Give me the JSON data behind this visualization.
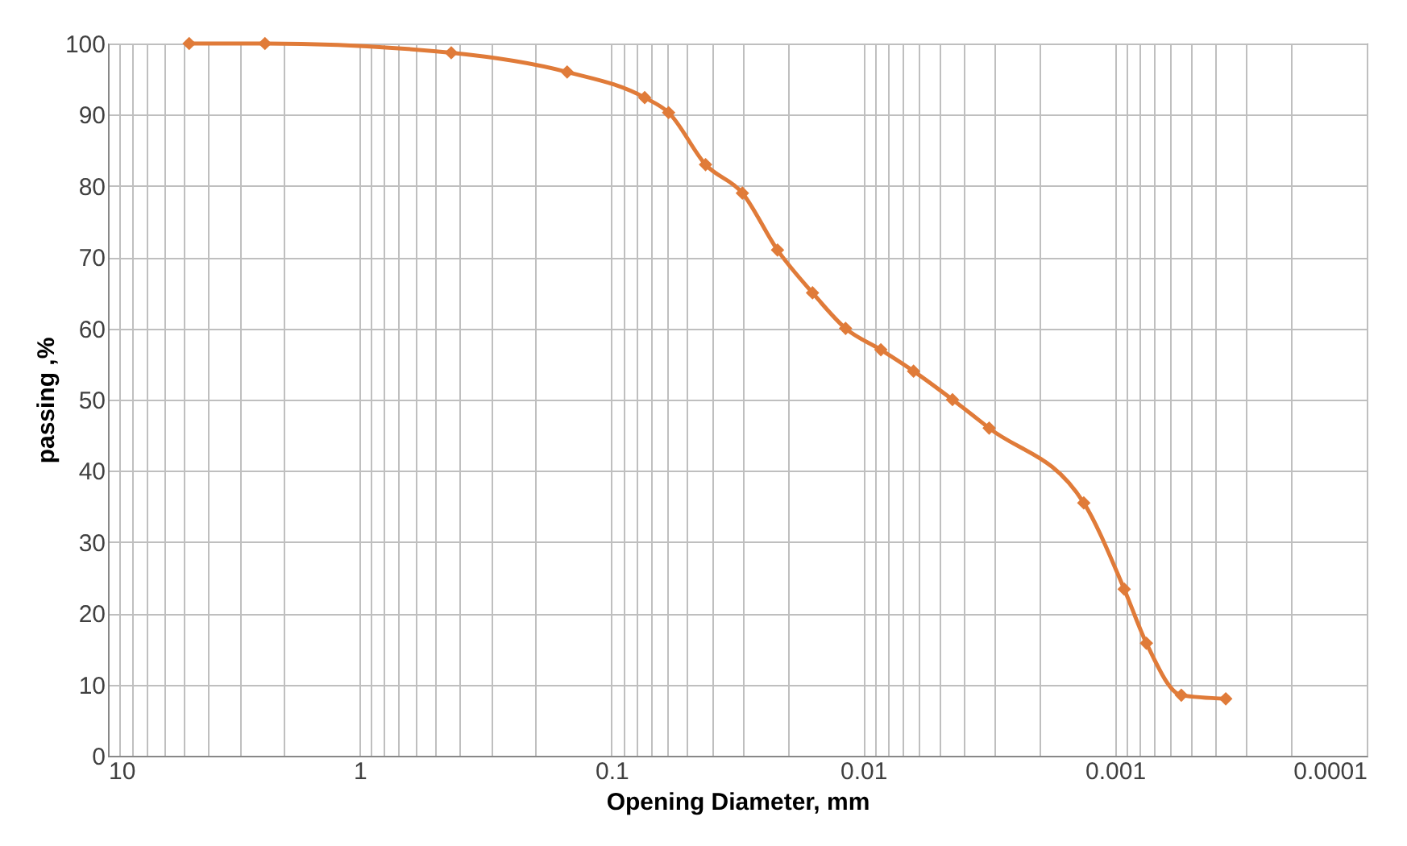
{
  "chart_data": {
    "type": "line",
    "xlabel": "Opening Diameter, mm",
    "ylabel": "passing ,%",
    "x": [
      4.76,
      2.38,
      0.433,
      0.15,
      0.0738,
      0.0593,
      0.0423,
      0.0302,
      0.0219,
      0.0159,
      0.01175,
      0.00851,
      0.00631,
      0.00442,
      0.00316,
      0.00133,
      0.000919,
      0.00075,
      0.000545,
      0.000363
    ],
    "series": [
      {
        "color": "#e07b39",
        "values": [
          100,
          100,
          98.7,
          96,
          92.4,
          90.3,
          83,
          79,
          71,
          65,
          60,
          57,
          54,
          50,
          46,
          35.5,
          23.4,
          15.8,
          8.5,
          8
        ]
      }
    ],
    "log": "x",
    "xlim": [
      10,
      0.0001
    ],
    "ylim": [
      0,
      100
    ],
    "xticks": [
      10,
      {
        "value": 9,
        "label": null
      },
      {
        "value": 8,
        "label": null
      },
      {
        "value": 7,
        "label": null
      },
      {
        "value": 6,
        "label": null
      },
      {
        "value": 5,
        "label": null
      },
      {
        "value": 4,
        "label": null
      },
      {
        "value": 3,
        "label": null
      },
      {
        "value": 2,
        "label": null
      },
      1,
      {
        "value": 0.9,
        "label": null
      },
      {
        "value": 0.8,
        "label": null
      },
      {
        "value": 0.7,
        "label": null
      },
      {
        "value": 0.6,
        "label": null
      },
      {
        "value": 0.5,
        "label": null
      },
      {
        "value": 0.4,
        "label": null
      },
      {
        "value": 0.3,
        "label": null
      },
      {
        "value": 0.2,
        "label": null
      },
      0.1,
      {
        "value": 0.09,
        "label": null
      },
      {
        "value": 0.08,
        "label": null
      },
      {
        "value": 0.07,
        "label": null
      },
      {
        "value": 0.06,
        "label": null
      },
      {
        "value": 0.05,
        "label": null
      },
      {
        "value": 0.04,
        "label": null
      },
      {
        "value": 0.03,
        "label": null
      },
      {
        "value": 0.02,
        "label": null
      },
      0.01,
      {
        "value": 0.009,
        "label": null
      },
      {
        "value": 0.008,
        "label": null
      },
      {
        "value": 0.007,
        "label": null
      },
      {
        "value": 0.006,
        "label": null
      },
      {
        "value": 0.005,
        "label": null
      },
      {
        "value": 0.004,
        "label": null
      },
      {
        "value": 0.003,
        "label": null
      },
      {
        "value": 0.002,
        "label": null
      },
      0.001,
      {
        "value": 0.0009,
        "label": null
      },
      {
        "value": 0.0008,
        "label": null
      },
      {
        "value": 0.0007,
        "label": null
      },
      {
        "value": 0.0006,
        "label": null
      },
      {
        "value": 0.0005,
        "label": null
      },
      {
        "value": 0.0004,
        "label": null
      },
      {
        "value": 0.0003,
        "label": null
      },
      {
        "value": 0.0002,
        "label": null
      },
      0.0001
    ],
    "yticks": [
      0,
      10,
      20,
      30,
      40,
      50,
      60,
      70,
      80,
      90,
      100
    ],
    "grid": true,
    "marker": "diamond",
    "line_style": "solid"
  }
}
